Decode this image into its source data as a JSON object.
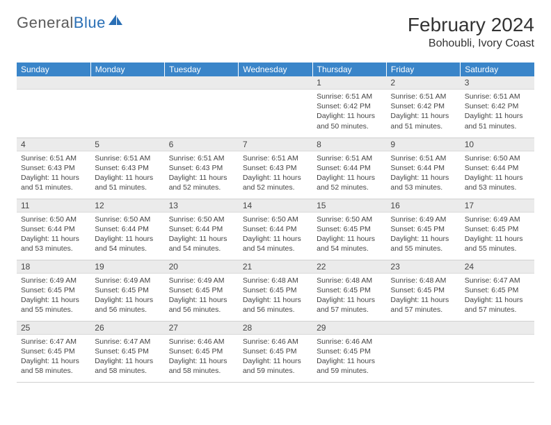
{
  "logo": {
    "text_gray": "General",
    "text_blue": "Blue"
  },
  "header": {
    "month_title": "February 2024",
    "location": "Bohoubli, Ivory Coast"
  },
  "colors": {
    "header_bg": "#3a85c9",
    "header_text": "#ffffff",
    "daynum_bg": "#ebebeb",
    "text": "#444444",
    "logo_gray": "#5a5a5a",
    "logo_blue": "#2a6fb5"
  },
  "weekdays": [
    "Sunday",
    "Monday",
    "Tuesday",
    "Wednesday",
    "Thursday",
    "Friday",
    "Saturday"
  ],
  "weeks": [
    [
      null,
      null,
      null,
      null,
      {
        "n": "1",
        "sr": "Sunrise: 6:51 AM",
        "ss": "Sunset: 6:42 PM",
        "dl": "Daylight: 11 hours and 50 minutes."
      },
      {
        "n": "2",
        "sr": "Sunrise: 6:51 AM",
        "ss": "Sunset: 6:42 PM",
        "dl": "Daylight: 11 hours and 51 minutes."
      },
      {
        "n": "3",
        "sr": "Sunrise: 6:51 AM",
        "ss": "Sunset: 6:42 PM",
        "dl": "Daylight: 11 hours and 51 minutes."
      }
    ],
    [
      {
        "n": "4",
        "sr": "Sunrise: 6:51 AM",
        "ss": "Sunset: 6:43 PM",
        "dl": "Daylight: 11 hours and 51 minutes."
      },
      {
        "n": "5",
        "sr": "Sunrise: 6:51 AM",
        "ss": "Sunset: 6:43 PM",
        "dl": "Daylight: 11 hours and 51 minutes."
      },
      {
        "n": "6",
        "sr": "Sunrise: 6:51 AM",
        "ss": "Sunset: 6:43 PM",
        "dl": "Daylight: 11 hours and 52 minutes."
      },
      {
        "n": "7",
        "sr": "Sunrise: 6:51 AM",
        "ss": "Sunset: 6:43 PM",
        "dl": "Daylight: 11 hours and 52 minutes."
      },
      {
        "n": "8",
        "sr": "Sunrise: 6:51 AM",
        "ss": "Sunset: 6:44 PM",
        "dl": "Daylight: 11 hours and 52 minutes."
      },
      {
        "n": "9",
        "sr": "Sunrise: 6:51 AM",
        "ss": "Sunset: 6:44 PM",
        "dl": "Daylight: 11 hours and 53 minutes."
      },
      {
        "n": "10",
        "sr": "Sunrise: 6:50 AM",
        "ss": "Sunset: 6:44 PM",
        "dl": "Daylight: 11 hours and 53 minutes."
      }
    ],
    [
      {
        "n": "11",
        "sr": "Sunrise: 6:50 AM",
        "ss": "Sunset: 6:44 PM",
        "dl": "Daylight: 11 hours and 53 minutes."
      },
      {
        "n": "12",
        "sr": "Sunrise: 6:50 AM",
        "ss": "Sunset: 6:44 PM",
        "dl": "Daylight: 11 hours and 54 minutes."
      },
      {
        "n": "13",
        "sr": "Sunrise: 6:50 AM",
        "ss": "Sunset: 6:44 PM",
        "dl": "Daylight: 11 hours and 54 minutes."
      },
      {
        "n": "14",
        "sr": "Sunrise: 6:50 AM",
        "ss": "Sunset: 6:44 PM",
        "dl": "Daylight: 11 hours and 54 minutes."
      },
      {
        "n": "15",
        "sr": "Sunrise: 6:50 AM",
        "ss": "Sunset: 6:45 PM",
        "dl": "Daylight: 11 hours and 54 minutes."
      },
      {
        "n": "16",
        "sr": "Sunrise: 6:49 AM",
        "ss": "Sunset: 6:45 PM",
        "dl": "Daylight: 11 hours and 55 minutes."
      },
      {
        "n": "17",
        "sr": "Sunrise: 6:49 AM",
        "ss": "Sunset: 6:45 PM",
        "dl": "Daylight: 11 hours and 55 minutes."
      }
    ],
    [
      {
        "n": "18",
        "sr": "Sunrise: 6:49 AM",
        "ss": "Sunset: 6:45 PM",
        "dl": "Daylight: 11 hours and 55 minutes."
      },
      {
        "n": "19",
        "sr": "Sunrise: 6:49 AM",
        "ss": "Sunset: 6:45 PM",
        "dl": "Daylight: 11 hours and 56 minutes."
      },
      {
        "n": "20",
        "sr": "Sunrise: 6:49 AM",
        "ss": "Sunset: 6:45 PM",
        "dl": "Daylight: 11 hours and 56 minutes."
      },
      {
        "n": "21",
        "sr": "Sunrise: 6:48 AM",
        "ss": "Sunset: 6:45 PM",
        "dl": "Daylight: 11 hours and 56 minutes."
      },
      {
        "n": "22",
        "sr": "Sunrise: 6:48 AM",
        "ss": "Sunset: 6:45 PM",
        "dl": "Daylight: 11 hours and 57 minutes."
      },
      {
        "n": "23",
        "sr": "Sunrise: 6:48 AM",
        "ss": "Sunset: 6:45 PM",
        "dl": "Daylight: 11 hours and 57 minutes."
      },
      {
        "n": "24",
        "sr": "Sunrise: 6:47 AM",
        "ss": "Sunset: 6:45 PM",
        "dl": "Daylight: 11 hours and 57 minutes."
      }
    ],
    [
      {
        "n": "25",
        "sr": "Sunrise: 6:47 AM",
        "ss": "Sunset: 6:45 PM",
        "dl": "Daylight: 11 hours and 58 minutes."
      },
      {
        "n": "26",
        "sr": "Sunrise: 6:47 AM",
        "ss": "Sunset: 6:45 PM",
        "dl": "Daylight: 11 hours and 58 minutes."
      },
      {
        "n": "27",
        "sr": "Sunrise: 6:46 AM",
        "ss": "Sunset: 6:45 PM",
        "dl": "Daylight: 11 hours and 58 minutes."
      },
      {
        "n": "28",
        "sr": "Sunrise: 6:46 AM",
        "ss": "Sunset: 6:45 PM",
        "dl": "Daylight: 11 hours and 59 minutes."
      },
      {
        "n": "29",
        "sr": "Sunrise: 6:46 AM",
        "ss": "Sunset: 6:45 PM",
        "dl": "Daylight: 11 hours and 59 minutes."
      },
      null,
      null
    ]
  ]
}
